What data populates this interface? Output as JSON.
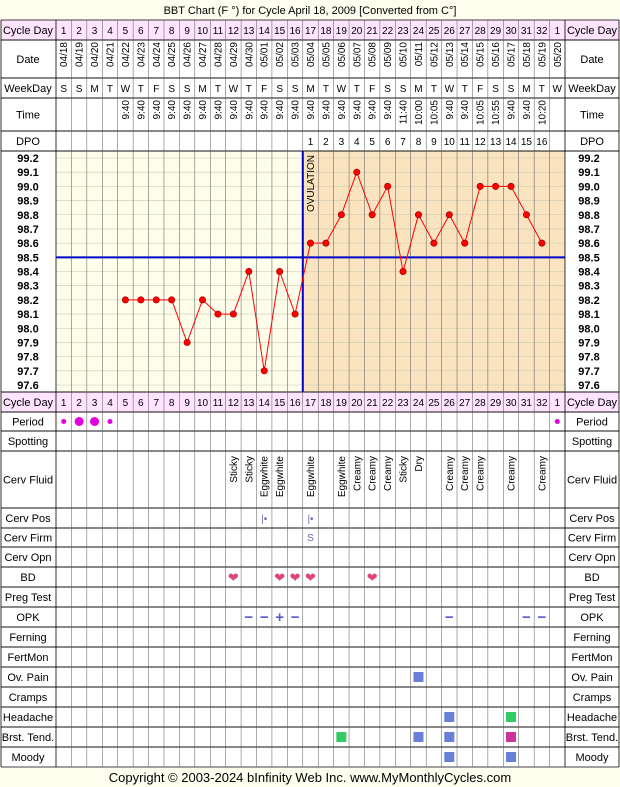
{
  "title": "BBT Chart (F °) for Cycle April 18, 2009  [Converted from C°]",
  "footer": "Copyright © 2003-2024 bInfinity Web Inc.    www.MyMonthlyCycles.com",
  "row_labels": {
    "cycle_day": "Cycle Day",
    "date": "Date",
    "weekday": "WeekDay",
    "time": "Time",
    "dpo": "DPO",
    "period": "Period",
    "spotting": "Spotting",
    "cerv_fluid": "Cerv Fluid",
    "cerv_pos": "Cerv Pos",
    "cerv_firm": "Cerv Firm",
    "cerv_opn": "Cerv Opn",
    "bd": "BD",
    "preg_test": "Preg Test",
    "opk": "OPK",
    "ferning": "Ferning",
    "fertmon": "FertMon",
    "ov_pain": "Ov. Pain",
    "cramps": "Cramps",
    "headache": "Headache",
    "brst_tend": "Brst. Tend.",
    "moody": "Moody"
  },
  "days": [
    {
      "cd": "1",
      "date": "04/18",
      "wd": "S",
      "time": "",
      "dpo": ""
    },
    {
      "cd": "2",
      "date": "04/19",
      "wd": "S",
      "time": "",
      "dpo": ""
    },
    {
      "cd": "3",
      "date": "04/20",
      "wd": "M",
      "time": "",
      "dpo": ""
    },
    {
      "cd": "4",
      "date": "04/21",
      "wd": "T",
      "time": "",
      "dpo": ""
    },
    {
      "cd": "5",
      "date": "04/22",
      "wd": "W",
      "time": "9:40",
      "dpo": ""
    },
    {
      "cd": "6",
      "date": "04/23",
      "wd": "T",
      "time": "9:40",
      "dpo": ""
    },
    {
      "cd": "7",
      "date": "04/24",
      "wd": "F",
      "time": "9:40",
      "dpo": ""
    },
    {
      "cd": "8",
      "date": "04/25",
      "wd": "S",
      "time": "9:40",
      "dpo": ""
    },
    {
      "cd": "9",
      "date": "04/26",
      "wd": "S",
      "time": "9:40",
      "dpo": ""
    },
    {
      "cd": "10",
      "date": "04/27",
      "wd": "M",
      "time": "9:40",
      "dpo": ""
    },
    {
      "cd": "11",
      "date": "04/28",
      "wd": "T",
      "time": "9:40",
      "dpo": ""
    },
    {
      "cd": "12",
      "date": "04/29",
      "wd": "W",
      "time": "9:40",
      "dpo": ""
    },
    {
      "cd": "13",
      "date": "04/30",
      "wd": "T",
      "time": "9:40",
      "dpo": ""
    },
    {
      "cd": "14",
      "date": "05/01",
      "wd": "F",
      "time": "9:40",
      "dpo": ""
    },
    {
      "cd": "15",
      "date": "05/02",
      "wd": "S",
      "time": "9:40",
      "dpo": ""
    },
    {
      "cd": "16",
      "date": "05/03",
      "wd": "S",
      "time": "9:40",
      "dpo": ""
    },
    {
      "cd": "17",
      "date": "05/04",
      "wd": "M",
      "time": "9:40",
      "dpo": "1"
    },
    {
      "cd": "18",
      "date": "05/05",
      "wd": "T",
      "time": "9:40",
      "dpo": "2"
    },
    {
      "cd": "19",
      "date": "05/06",
      "wd": "W",
      "time": "9:40",
      "dpo": "3"
    },
    {
      "cd": "20",
      "date": "05/07",
      "wd": "T",
      "time": "9:40",
      "dpo": "4"
    },
    {
      "cd": "21",
      "date": "05/08",
      "wd": "F",
      "time": "9:40",
      "dpo": "5"
    },
    {
      "cd": "22",
      "date": "05/09",
      "wd": "S",
      "time": "9:40",
      "dpo": "6"
    },
    {
      "cd": "23",
      "date": "05/10",
      "wd": "S",
      "time": "11:40",
      "dpo": "7"
    },
    {
      "cd": "24",
      "date": "05/11",
      "wd": "M",
      "time": "10:00",
      "dpo": "8"
    },
    {
      "cd": "25",
      "date": "05/12",
      "wd": "T",
      "time": "10:05",
      "dpo": "9"
    },
    {
      "cd": "26",
      "date": "05/13",
      "wd": "W",
      "time": "9:40",
      "dpo": "10"
    },
    {
      "cd": "27",
      "date": "05/14",
      "wd": "T",
      "time": "9:40",
      "dpo": "11"
    },
    {
      "cd": "28",
      "date": "05/15",
      "wd": "F",
      "time": "10:05",
      "dpo": "12"
    },
    {
      "cd": "29",
      "date": "05/16",
      "wd": "S",
      "time": "10:55",
      "dpo": "13"
    },
    {
      "cd": "30",
      "date": "05/17",
      "wd": "S",
      "time": "9:40",
      "dpo": "14"
    },
    {
      "cd": "31",
      "date": "05/18",
      "wd": "M",
      "time": "9:40",
      "dpo": "15"
    },
    {
      "cd": "32",
      "date": "05/19",
      "wd": "T",
      "time": "10:20",
      "dpo": "16"
    },
    {
      "cd": "1",
      "date": "05/20",
      "wd": "W",
      "time": "",
      "dpo": ""
    }
  ],
  "chart_data": {
    "type": "line",
    "x": [
      5,
      6,
      7,
      8,
      9,
      10,
      11,
      12,
      13,
      14,
      15,
      16,
      17,
      18,
      19,
      20,
      21,
      22,
      23,
      24,
      25,
      26,
      27,
      28,
      29,
      30,
      31,
      32
    ],
    "values": [
      98.2,
      98.2,
      98.2,
      98.2,
      97.9,
      98.2,
      98.1,
      98.1,
      98.4,
      97.7,
      98.4,
      98.1,
      98.6,
      98.6,
      98.8,
      99.1,
      98.8,
      99.0,
      98.4,
      98.8,
      98.6,
      98.8,
      98.6,
      99.0,
      99.0,
      99.0,
      98.8,
      98.6
    ],
    "y_ticks": [
      "99.2",
      "99.1",
      "99.0",
      "98.9",
      "98.8",
      "98.7",
      "98.6",
      "98.5",
      "98.4",
      "98.3",
      "98.2",
      "98.1",
      "98.0",
      "97.9",
      "97.8",
      "97.7",
      "97.6"
    ],
    "ylim": [
      97.6,
      99.2
    ],
    "coverline": 98.5,
    "ovulation_day": 16,
    "ovulation_label": "OVULATION",
    "grid": true,
    "colors": {
      "line": "#ff0000",
      "point": "#ff0000",
      "coverline": "#0000cc",
      "ovulation": "#0000cc",
      "post_ovulation": "#fae4c0",
      "pre_ovulation": "#fdfdea",
      "header": "#ffe4ff"
    }
  },
  "period": [
    {
      "day": 1,
      "size": "small"
    },
    {
      "day": 2,
      "size": "large"
    },
    {
      "day": 3,
      "size": "large"
    },
    {
      "day": 4,
      "size": "small"
    },
    {
      "day": 33,
      "size": "small"
    }
  ],
  "cerv_fluid": [
    {
      "day": 12,
      "label": "Sticky"
    },
    {
      "day": 13,
      "label": "Sticky"
    },
    {
      "day": 14,
      "label": "Eggwhite"
    },
    {
      "day": 15,
      "label": "Eggwhite"
    },
    {
      "day": 17,
      "label": "Eggwhite"
    },
    {
      "day": 19,
      "label": "Eggwhite"
    },
    {
      "day": 20,
      "label": "Creamy"
    },
    {
      "day": 21,
      "label": "Creamy"
    },
    {
      "day": 22,
      "label": "Creamy"
    },
    {
      "day": 23,
      "label": "Sticky"
    },
    {
      "day": 24,
      "label": "Dry"
    },
    {
      "day": 26,
      "label": "Creamy"
    },
    {
      "day": 27,
      "label": "Creamy"
    },
    {
      "day": 28,
      "label": "Creamy"
    },
    {
      "day": 30,
      "label": "Creamy"
    },
    {
      "day": 32,
      "label": "Creamy"
    }
  ],
  "cerv_pos": [
    {
      "day": 14,
      "label": "|•"
    },
    {
      "day": 17,
      "label": "|•"
    }
  ],
  "cerv_firm": [
    {
      "day": 17,
      "label": "S"
    }
  ],
  "bd": [
    12,
    15,
    16,
    17,
    21
  ],
  "opk": [
    {
      "day": 13,
      "label": "−"
    },
    {
      "day": 14,
      "label": "−"
    },
    {
      "day": 15,
      "label": "+"
    },
    {
      "day": 16,
      "label": "−"
    },
    {
      "day": 26,
      "label": "−"
    },
    {
      "day": 31,
      "label": "−"
    },
    {
      "day": 32,
      "label": "−"
    }
  ],
  "ov_pain": [
    {
      "day": 24,
      "color": "#6a7fd8"
    }
  ],
  "headache": [
    {
      "day": 26,
      "color": "#6a7fd8"
    },
    {
      "day": 30,
      "color": "#33cc66"
    }
  ],
  "brst_tend": [
    {
      "day": 19,
      "color": "#33cc66"
    },
    {
      "day": 24,
      "color": "#6a7fd8"
    },
    {
      "day": 26,
      "color": "#6a7fd8"
    },
    {
      "day": 30,
      "color": "#cc3399"
    }
  ],
  "moody": [
    {
      "day": 26,
      "color": "#6a7fd8"
    },
    {
      "day": 30,
      "color": "#6a7fd8"
    }
  ],
  "bd_symbol": "❤",
  "bd_color": "#e0457a",
  "period_color": "#e000e0"
}
